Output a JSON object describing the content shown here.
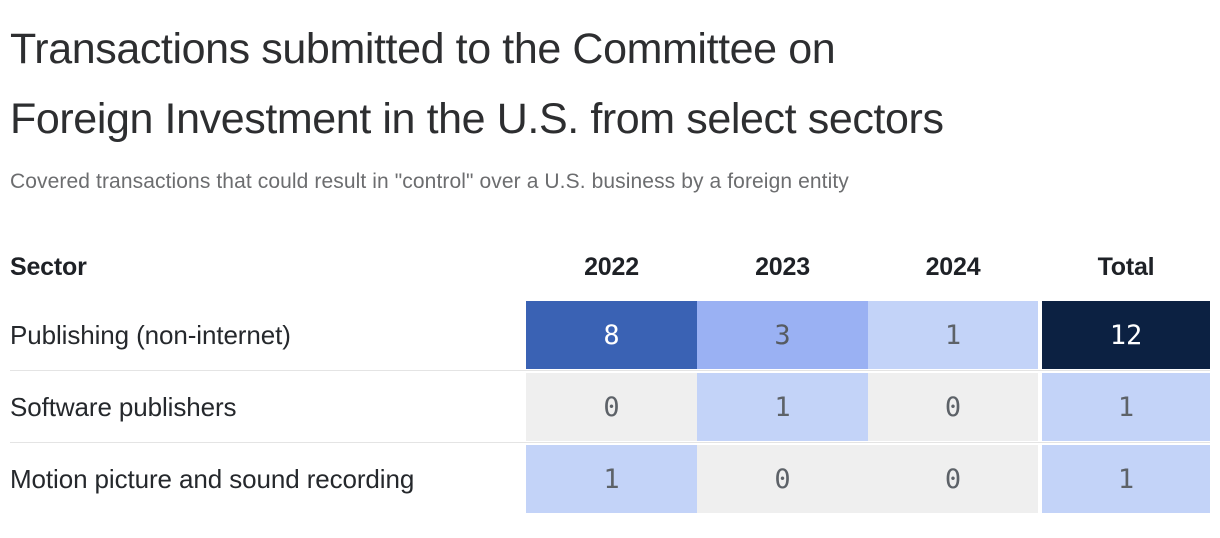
{
  "header": {
    "title_line1": "Transactions submitted to the Committee on",
    "title_line2": "Foreign Investment in the U.S. from select sectors",
    "subtitle": "Covered transactions that could result in \"control\" over a U.S. business by a foreign entity"
  },
  "table": {
    "sector_header": "Sector",
    "columns": {
      "c2022": "2022",
      "c2023": "2023",
      "c2024": "2024",
      "total": "Total"
    },
    "rows": [
      {
        "sector": "Publishing (non-internet)",
        "cells": [
          {
            "v": "8",
            "bg": "#3a62b4",
            "fg": "#ffffff"
          },
          {
            "v": "3",
            "bg": "#9ab1f3",
            "fg": "#565b61"
          },
          {
            "v": "1",
            "bg": "#c3d3f8",
            "fg": "#5d6268"
          },
          {
            "v": "12",
            "bg": "#0c2142",
            "fg": "#ffffff"
          }
        ]
      },
      {
        "sector": "Software publishers",
        "cells": [
          {
            "v": "0",
            "bg": "#efefef",
            "fg": "#5d6268"
          },
          {
            "v": "1",
            "bg": "#c3d3f8",
            "fg": "#5d6268"
          },
          {
            "v": "0",
            "bg": "#efefef",
            "fg": "#5d6268"
          },
          {
            "v": "1",
            "bg": "#c3d3f8",
            "fg": "#5d6268"
          }
        ]
      },
      {
        "sector": "Motion picture and sound recording",
        "cells": [
          {
            "v": "1",
            "bg": "#c3d3f8",
            "fg": "#5d6268"
          },
          {
            "v": "0",
            "bg": "#efefef",
            "fg": "#5d6268"
          },
          {
            "v": "0",
            "bg": "#efefef",
            "fg": "#5d6268"
          },
          {
            "v": "1",
            "bg": "#c3d3f8",
            "fg": "#5d6268"
          }
        ]
      }
    ]
  },
  "chart_data": {
    "type": "heatmap",
    "title": "Transactions submitted to the Committee on Foreign Investment in the U.S. from select sectors",
    "subtitle": "Covered transactions that could result in \"control\" over a U.S. business by a foreign entity",
    "row_label_header": "Sector",
    "columns": [
      "2022",
      "2023",
      "2024",
      "Total"
    ],
    "rows": [
      "Publishing (non-internet)",
      "Software publishers",
      "Motion picture and sound recording"
    ],
    "values": [
      [
        8,
        3,
        1,
        12
      ],
      [
        0,
        1,
        0,
        1
      ],
      [
        1,
        0,
        0,
        1
      ]
    ],
    "color_scale": {
      "0": "#efefef",
      "1": "#c3d3f8",
      "3": "#9ab1f3",
      "8": "#3a62b4",
      "12": "#0c2142"
    },
    "legend_position": "none",
    "grid": false
  }
}
